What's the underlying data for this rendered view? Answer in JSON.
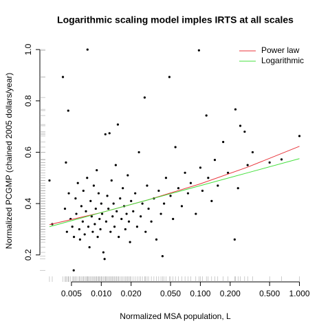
{
  "chart_data": {
    "type": "scatter",
    "title": "Logarithmic scaling model imples IRTS at all scales",
    "x_label": "Normalized MSA population, L",
    "y_label": "Normalized PCGMP (chained 2005 dollars/year)",
    "xscale": "log",
    "xlim": [
      0.0024,
      1.26
    ],
    "ylim": [
      0.095,
      1.035
    ],
    "xticks": [
      0.005,
      {
        "value": 0.01,
        "label": "0.010"
      },
      {
        "value": 0.02,
        "label": "0.020"
      },
      {
        "value": 0.05,
        "label": "0.050"
      },
      {
        "value": 0.1,
        "label": "0.100"
      },
      {
        "value": 0.2,
        "label": "0.200"
      },
      {
        "value": 0.5,
        "label": "0.500"
      },
      {
        "value": 1,
        "label": "1.000"
      }
    ],
    "yticks": [
      0.2,
      0.4,
      0.6,
      0.8,
      {
        "value": 1,
        "label": "1.0"
      }
    ],
    "color": "#000000",
    "rug": true,
    "legend": "top-right",
    "x": [
      0.003,
      0.0032,
      0.0041,
      0.00464,
      0.0044,
      0.0043,
      0.0045,
      0.0047,
      0.0049,
      0.0051,
      0.00527,
      0.0053,
      0.0055,
      0.0056,
      0.0058,
      0.006,
      0.0061,
      0.0063,
      0.0065,
      0.0066,
      0.0068,
      0.007,
      0.00726,
      0.0072,
      0.0074,
      0.0076,
      0.0078,
      0.008,
      0.0082,
      0.0084,
      0.0086,
      0.0088,
      0.009,
      0.0092,
      0.0094,
      0.0096,
      0.0098,
      0.01,
      0.0102,
      0.0105,
      0.0108,
      0.011,
      0.0112,
      0.0115,
      0.0118,
      0.0121,
      0.0124,
      0.0127,
      0.013,
      0.0133,
      0.0136,
      0.014,
      0.0143,
      0.0147,
      0.015,
      0.0155,
      0.016,
      0.0165,
      0.017,
      0.0175,
      0.018,
      0.0185,
      0.019,
      0.0195,
      0.02,
      0.021,
      0.022,
      0.023,
      0.024,
      0.025,
      0.026,
      0.0274,
      0.028,
      0.029,
      0.03,
      0.032,
      0.034,
      0.036,
      0.038,
      0.04,
      0.0415,
      0.043,
      0.045,
      0.0487,
      0.05,
      0.053,
      0.056,
      0.06,
      0.065,
      0.07,
      0.075,
      0.08,
      0.0968,
      0.09,
      0.1,
      0.105,
      0.115,
      0.12,
      0.13,
      0.14,
      0.15,
      0.17,
      0.19,
      0.222,
      0.226,
      0.24,
      0.253,
      0.28,
      0.3,
      0.337,
      0.5,
      0.66,
      1.0
    ],
    "values": [
      0.49,
      0.32,
      0.893,
      0.762,
      0.56,
      0.38,
      0.29,
      0.44,
      0.34,
      0.31,
      0.14,
      0.27,
      0.42,
      0.36,
      0.48,
      0.3,
      0.26,
      0.39,
      0.33,
      0.45,
      0.28,
      0.37,
      1.0,
      0.5,
      0.31,
      0.23,
      0.41,
      0.35,
      0.29,
      0.47,
      0.32,
      0.38,
      0.53,
      0.27,
      0.44,
      0.34,
      0.3,
      0.4,
      0.36,
      0.21,
      0.184,
      0.67,
      0.33,
      0.43,
      0.38,
      0.674,
      0.29,
      0.49,
      0.35,
      0.4,
      0.31,
      0.55,
      0.37,
      0.708,
      0.27,
      0.42,
      0.34,
      0.46,
      0.39,
      0.3,
      0.36,
      0.51,
      0.33,
      0.25,
      0.41,
      0.37,
      0.44,
      0.31,
      0.6,
      0.35,
      0.4,
      0.813,
      0.29,
      0.47,
      0.38,
      0.33,
      0.42,
      0.26,
      0.45,
      0.36,
      0.195,
      0.4,
      0.5,
      0.893,
      0.43,
      0.34,
      0.62,
      0.46,
      0.39,
      0.52,
      0.44,
      0.48,
      0.997,
      0.36,
      0.54,
      0.45,
      0.743,
      0.5,
      0.41,
      0.57,
      0.47,
      0.64,
      0.52,
      0.26,
      0.767,
      0.46,
      0.703,
      0.68,
      0.55,
      0.6,
      0.56,
      0.572,
      0.663
    ],
    "lines": [
      {
        "name": "Power law",
        "color": "#e8333a",
        "x": [
          0.003,
          0.01,
          0.03,
          0.1,
          0.3,
          1.0
        ],
        "values": [
          0.318,
          0.365,
          0.415,
          0.477,
          0.542,
          0.623
        ]
      },
      {
        "name": "Logarithmic",
        "color": "#44e03c",
        "x": [
          0.003,
          0.01,
          0.03,
          0.1,
          0.3,
          1.0
        ],
        "values": [
          0.31,
          0.365,
          0.415,
          0.47,
          0.52,
          0.575
        ]
      }
    ]
  }
}
